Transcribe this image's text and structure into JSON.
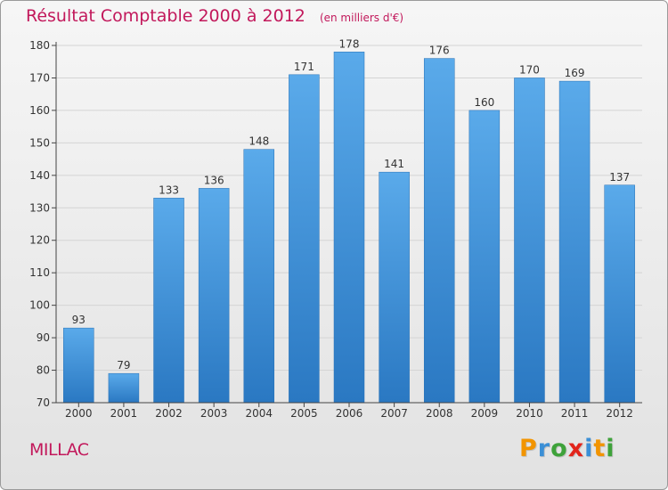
{
  "title": "Résultat Comptable 2000 à 2012",
  "unit_label": "(en milliers d'€)",
  "city": "MILLAC",
  "logo": {
    "letters": [
      "P",
      "r",
      "o",
      "x",
      "i",
      "t",
      "i"
    ],
    "colors": [
      "#f29400",
      "#3b8fd6",
      "#3ea23a",
      "#e2241b",
      "#3b8fd6",
      "#f29400",
      "#3ea23a"
    ]
  },
  "colors": {
    "bar_top": "#5aaaea",
    "bar_bottom": "#2a78c2",
    "axis": "#444444",
    "grid": "#d4d4d4",
    "text": "#333333",
    "title": "#c2185b"
  },
  "chart_data": {
    "type": "bar",
    "title": "Résultat Comptable 2000 à 2012",
    "xlabel": "",
    "ylabel": "",
    "categories": [
      "2000",
      "2001",
      "2002",
      "2003",
      "2004",
      "2005",
      "2006",
      "2007",
      "2008",
      "2009",
      "2010",
      "2011",
      "2012"
    ],
    "values": [
      93,
      79,
      133,
      136,
      148,
      171,
      178,
      141,
      176,
      160,
      170,
      169,
      137
    ],
    "ylim": [
      70,
      180
    ],
    "yticks": [
      70,
      80,
      90,
      100,
      110,
      120,
      130,
      140,
      150,
      160,
      170,
      180
    ],
    "grid": true
  }
}
